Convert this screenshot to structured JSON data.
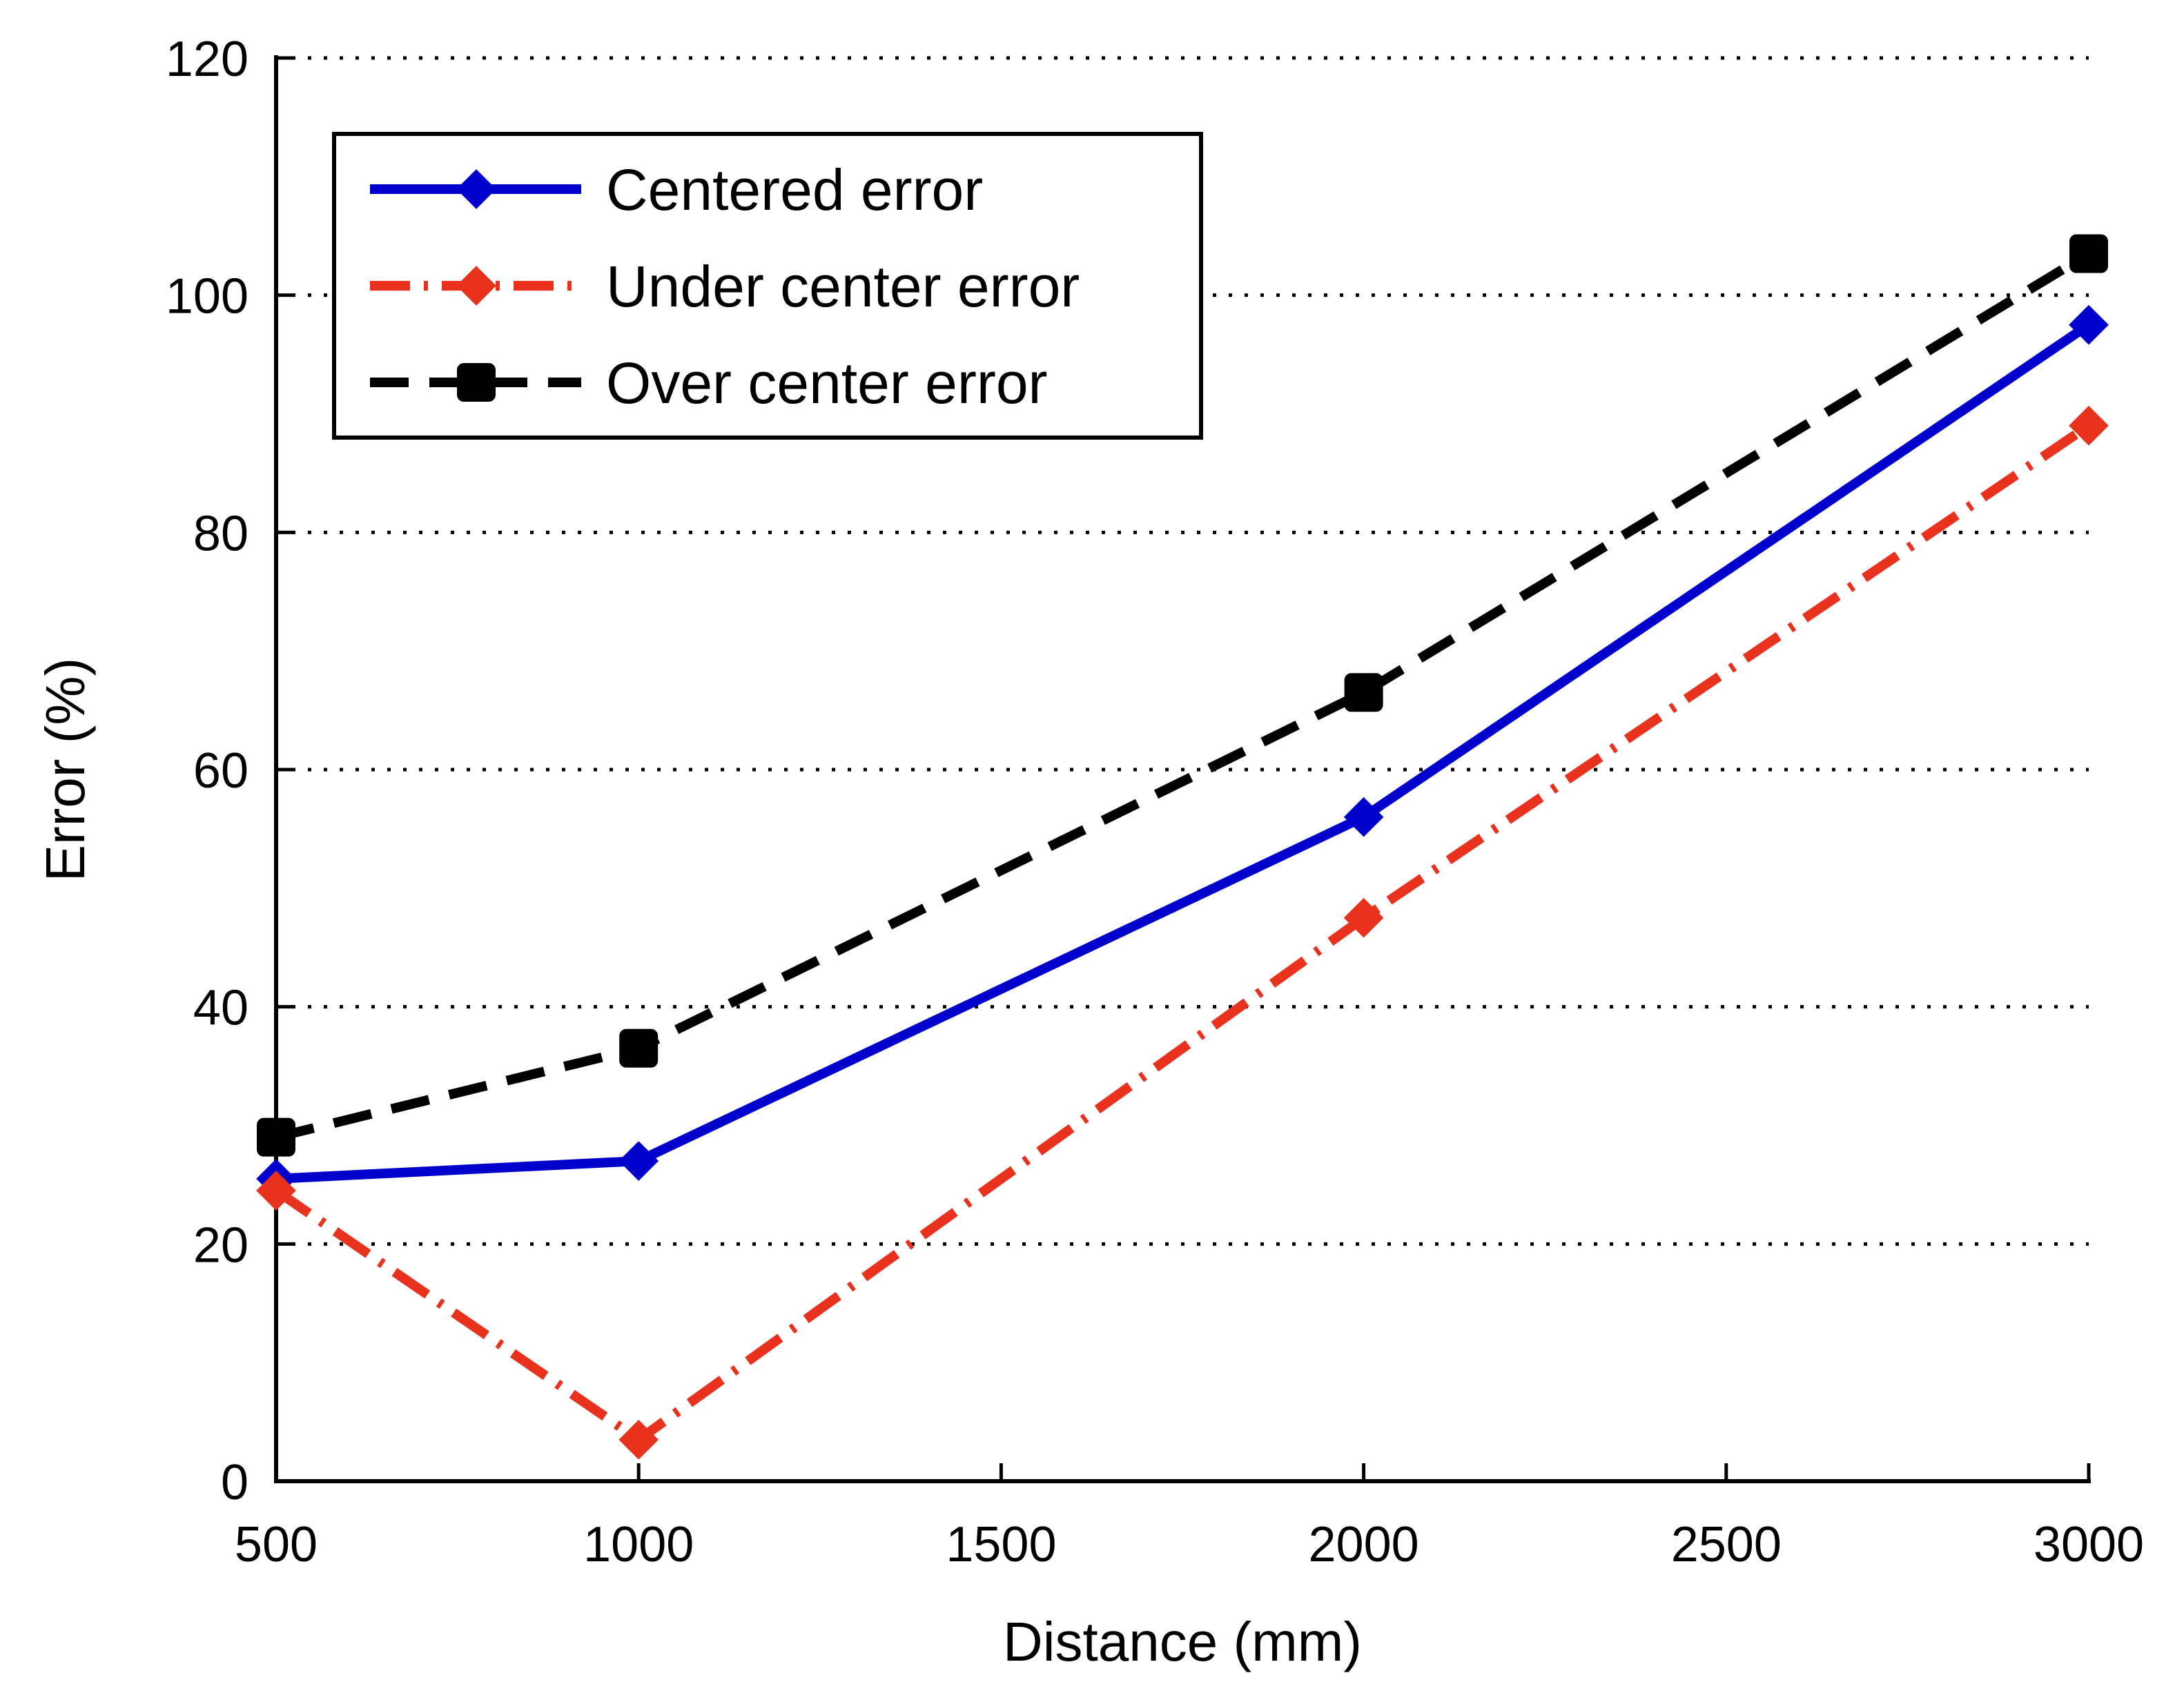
{
  "chart_data": {
    "type": "line",
    "xlabel": "Distance (mm)",
    "ylabel": "Error (%)",
    "x_ticks": [
      500,
      1000,
      1500,
      2000,
      2500,
      3000
    ],
    "y_ticks": [
      0,
      20,
      40,
      60,
      80,
      100,
      120
    ],
    "xlim": [
      500,
      3000
    ],
    "ylim": [
      0,
      120
    ],
    "grid": "horizontal dotted",
    "legend_position": "top-left",
    "series": [
      {
        "name": "Centered error",
        "color": "#0000cc",
        "line_style": "solid",
        "marker": "diamond",
        "x": [
          500,
          1000,
          2000,
          3000
        ],
        "y": [
          25.5,
          27,
          56,
          97.5
        ]
      },
      {
        "name": "Under center error",
        "color": "#e8321e",
        "line_style": "dash-dot",
        "marker": "diamond",
        "x": [
          500,
          1000,
          2000,
          3000
        ],
        "y": [
          24.5,
          3.5,
          47.5,
          89
        ]
      },
      {
        "name": "Over center error",
        "color": "#000000",
        "line_style": "dashed",
        "marker": "square",
        "x": [
          500,
          1000,
          2000,
          3000
        ],
        "y": [
          29,
          36.5,
          66.5,
          103.5
        ]
      }
    ]
  }
}
